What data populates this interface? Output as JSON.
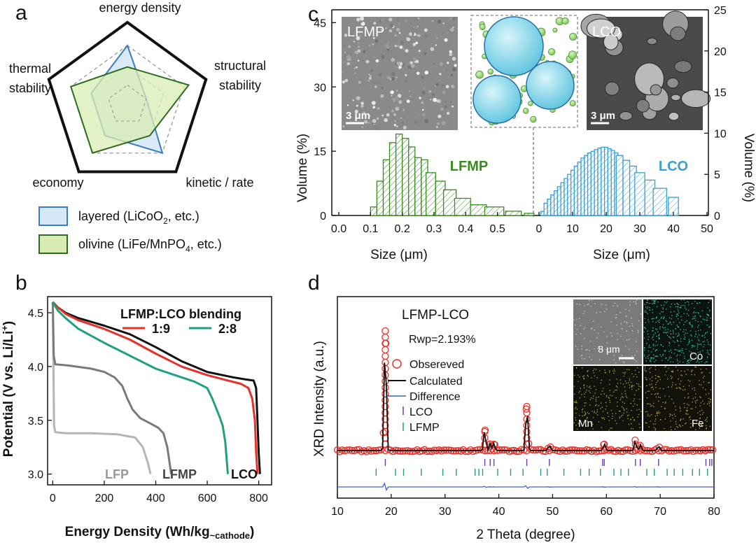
{
  "panel_a": {
    "letter": "a",
    "axes": [
      "energy density",
      "structural stability",
      "kinetic / rate",
      "economy",
      "thermal stability"
    ],
    "axes_line2": [
      "",
      "",
      "",
      "",
      ""
    ],
    "legend": [
      {
        "label": "layered (LiCoO",
        "sub": "2",
        "tail": ", etc.)",
        "fill": "#d6e8f5",
        "stroke": "#3a7cc4"
      },
      {
        "label": "olivine (LiFe/MnPO",
        "sub": "4",
        "tail": ", etc.)",
        "fill": "#d9ecb3",
        "stroke": "#2e6b1f"
      }
    ],
    "structural_line1": "structural",
    "structural_line2": "stability",
    "thermal_line1": "thermal",
    "thermal_line2": "stability"
  },
  "chart_data": [
    {
      "type": "line",
      "panel": "b",
      "xlabel_main": "Energy Density (Wh/kg",
      "xlabel_sub": "~cathode",
      "xlabel_close": ")",
      "ylabel_main": "Potential (V vs. Li/Li",
      "ylabel_sup": "+",
      "ylabel_close": ")",
      "xlim": [
        -20,
        850
      ],
      "ylim": [
        2.9,
        4.65
      ],
      "xticks": [
        "0",
        "200",
        "400",
        "600",
        "800"
      ],
      "yticks": [
        "3.0",
        "3.5",
        "4.0",
        "4.5"
      ],
      "legend_title": "LFMP:LCO blending",
      "series": [
        {
          "name": "LFP",
          "color": "#b5b5b5",
          "x": [
            0,
            5,
            10,
            50,
            150,
            250,
            320,
            350,
            370,
            380
          ],
          "y": [
            4.6,
            3.45,
            3.39,
            3.38,
            3.38,
            3.37,
            3.34,
            3.25,
            3.1,
            3.0
          ]
        },
        {
          "name": "LFMP",
          "color": "#7a7a7a",
          "x": [
            0,
            4,
            10,
            60,
            150,
            200,
            240,
            270,
            290,
            310,
            340,
            380,
            410,
            430,
            445,
            460
          ],
          "y": [
            4.6,
            4.1,
            4.02,
            4.01,
            3.98,
            3.95,
            3.9,
            3.82,
            3.7,
            3.6,
            3.52,
            3.47,
            3.43,
            3.38,
            3.25,
            3.0
          ]
        },
        {
          "name": "LCO",
          "color": "#111111",
          "x": [
            0,
            20,
            50,
            100,
            200,
            300,
            400,
            500,
            600,
            700,
            750,
            780,
            790,
            795,
            800,
            805
          ],
          "y": [
            4.6,
            4.55,
            4.5,
            4.45,
            4.38,
            4.3,
            4.18,
            4.05,
            3.95,
            3.9,
            3.88,
            3.87,
            3.8,
            3.5,
            3.2,
            3.0
          ]
        },
        {
          "name": "1:9",
          "color": "#e8302a",
          "x": [
            0,
            20,
            50,
            100,
            200,
            300,
            400,
            500,
            600,
            680,
            730,
            760,
            775,
            785,
            790,
            795
          ],
          "y": [
            4.6,
            4.55,
            4.49,
            4.43,
            4.35,
            4.25,
            4.12,
            4.0,
            3.92,
            3.87,
            3.84,
            3.8,
            3.7,
            3.5,
            3.2,
            3.0
          ]
        },
        {
          "name": "2:8",
          "color": "#1fa07f",
          "x": [
            0,
            20,
            50,
            100,
            200,
            300,
            400,
            500,
            550,
            600,
            620,
            640,
            650,
            660,
            670,
            680
          ],
          "y": [
            4.6,
            4.52,
            4.45,
            4.35,
            4.22,
            4.1,
            3.98,
            3.9,
            3.86,
            3.8,
            3.7,
            3.58,
            3.52,
            3.45,
            3.3,
            3.0
          ]
        }
      ],
      "annotations": [
        "LFP",
        "LFMP",
        "LCO"
      ]
    },
    {
      "type": "bar",
      "panel": "c-left",
      "title": "LFMP",
      "xlabel": "Size (μm)",
      "ylabel": "Volume (%)",
      "xticks": [
        "0.0",
        "0.1",
        "0.2",
        "0.3",
        "0.4",
        "0.5"
      ],
      "yticks": [
        "0",
        "15",
        "30",
        "45"
      ],
      "xlim": [
        0,
        0.62
      ],
      "ylim": [
        0,
        48
      ],
      "color": "#3a8a1f",
      "x": [
        0.11,
        0.13,
        0.15,
        0.17,
        0.19,
        0.21,
        0.23,
        0.25,
        0.27,
        0.29,
        0.32,
        0.35,
        0.39,
        0.44,
        0.49,
        0.55,
        0.6
      ],
      "values": [
        2,
        8,
        13,
        17,
        19,
        18,
        16,
        13.5,
        13,
        10,
        8,
        6,
        4,
        2.5,
        2,
        1,
        0.5
      ]
    },
    {
      "type": "bar",
      "panel": "c-right",
      "title": "LCO",
      "xlabel": "Size (μm)",
      "ylabel": "Volume (%)",
      "xticks": [
        "0",
        "10",
        "20",
        "30",
        "40",
        "50"
      ],
      "yticks": [
        "0",
        "5",
        "10",
        "15",
        "20",
        "25"
      ],
      "xlim": [
        0,
        50
      ],
      "ylim": [
        0,
        25
      ],
      "color": "#3a9fd6",
      "x": [
        1,
        2,
        3,
        4,
        5,
        6,
        7,
        8,
        9,
        10,
        11,
        12,
        13,
        14,
        15,
        16,
        17,
        18,
        19,
        20,
        21,
        22,
        23,
        24,
        26,
        28,
        30,
        33,
        36,
        40
      ],
      "values": [
        0.5,
        1.5,
        2,
        2.5,
        3,
        3.5,
        4,
        4.5,
        5,
        5.5,
        6,
        6.5,
        7,
        7.3,
        7.6,
        7.8,
        8,
        8.2,
        8.3,
        8.3,
        8.1,
        7.9,
        7.6,
        7.3,
        6.7,
        6,
        5.2,
        4.3,
        3.3,
        2.2
      ]
    },
    {
      "type": "line",
      "panel": "d",
      "xlabel": "2 Theta (degree)",
      "ylabel": "XRD Intensity (a.u.)",
      "xticks": [
        "10",
        "20",
        "30",
        "40",
        "50",
        "60",
        "70",
        "80"
      ],
      "xlim": [
        10,
        80
      ],
      "label": "LFMP-LCO",
      "rwp": "Rwp=2.193%",
      "legend": [
        "Obsereved",
        "Calculated",
        "Difference",
        "LCO",
        "LFMP"
      ],
      "peaks_2theta": [
        18.9,
        37.4,
        38.4,
        39.1,
        45.2,
        49.4,
        59.6,
        65.4,
        66.3,
        69.7
      ],
      "peaks_intensity": [
        100,
        17,
        6,
        6,
        39,
        5,
        6,
        8,
        5,
        4
      ],
      "lco_ticks": [
        18.9,
        37.4,
        38.4,
        39.1,
        45.2,
        49.4,
        59.3,
        59.6,
        65.4,
        66.3,
        69.7,
        78.5,
        79.2,
        79.6
      ],
      "lfmp_ticks": [
        17.2,
        20.8,
        22.3,
        25.6,
        29.6,
        32.1,
        35.6,
        36.3,
        37.0,
        39.8,
        42.2,
        44.5,
        47.8,
        49.0,
        52.1,
        55.2,
        56.8,
        58.9,
        61.4,
        62.7,
        64.1,
        67.5,
        68.9,
        71.3,
        72.6,
        74.2,
        76.0,
        77.3,
        78.8
      ],
      "inset_labels": [
        "8 μm",
        "Co",
        "Mn",
        "Fe"
      ]
    }
  ],
  "panel_c": {
    "letter": "c",
    "sem_left_label": "LFMP",
    "sem_right_label": "LCO",
    "scale_left": "3 μm",
    "scale_right": "3 μm"
  },
  "panel_b": {
    "letter": "b"
  },
  "panel_d": {
    "letter": "d"
  }
}
